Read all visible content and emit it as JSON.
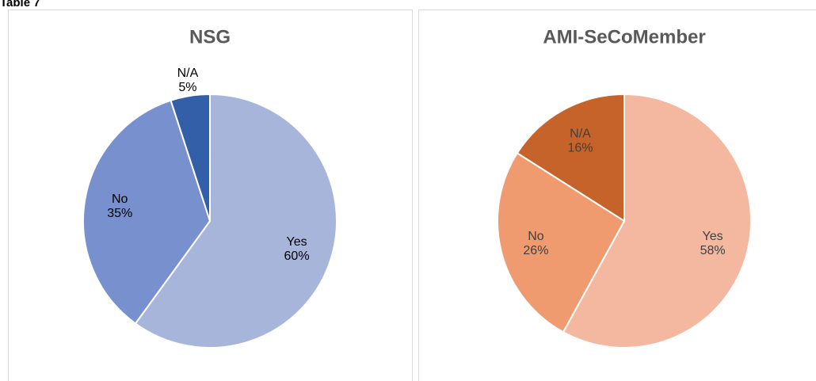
{
  "heading": "Table 7",
  "chart_data": [
    {
      "type": "pie",
      "title": "NSG",
      "categories": [
        "Yes",
        "No",
        "N/A"
      ],
      "values": [
        60,
        35,
        5
      ],
      "value_labels": [
        "60%",
        "35%",
        "5%"
      ],
      "colors": [
        "#a7b5db",
        "#7990cf",
        "#335fa8"
      ]
    },
    {
      "type": "pie",
      "title": "AMI-SeCoMember",
      "categories": [
        "Yes",
        "No",
        "N/A"
      ],
      "values": [
        58,
        26,
        16
      ],
      "value_labels": [
        "58%",
        "26%",
        "16%"
      ],
      "colors": [
        "#f4b8a0",
        "#f09a70",
        "#c5632a"
      ]
    }
  ]
}
